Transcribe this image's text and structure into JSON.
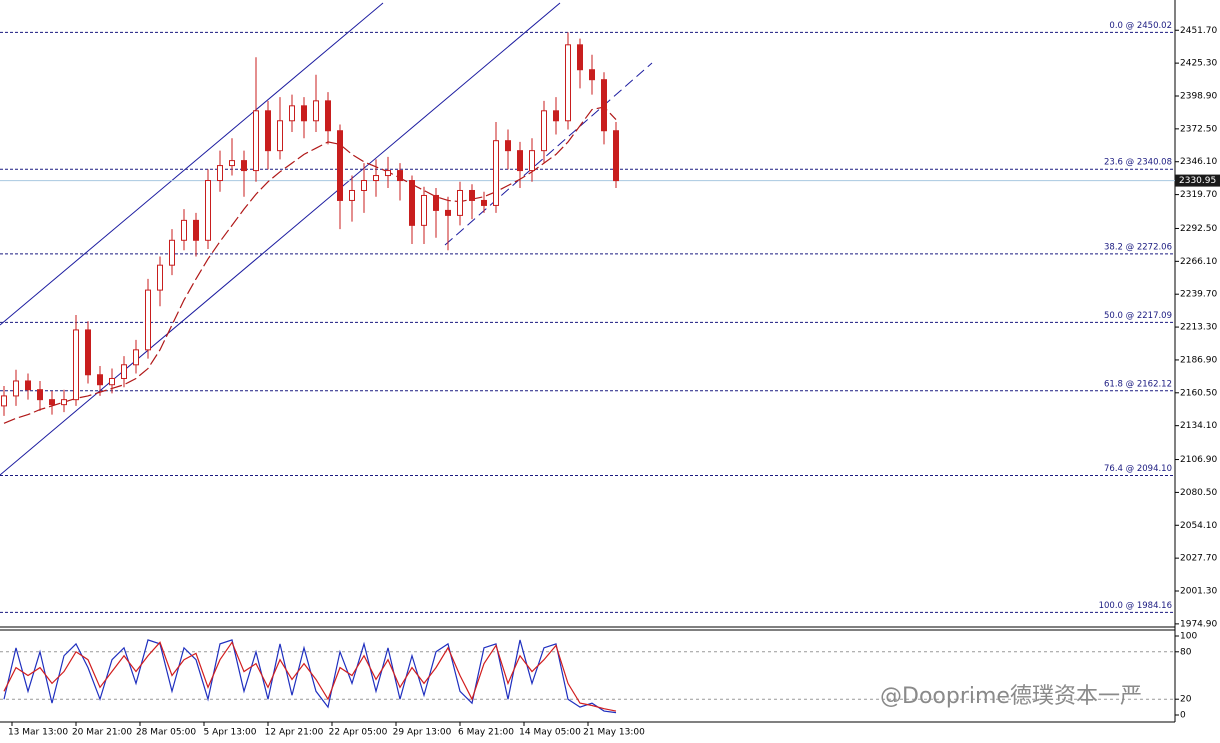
{
  "chart_data": {
    "type": "candlestick",
    "x_labels": [
      "13 Mar 13:00",
      "20 Mar 21:00",
      "28 Mar 05:00",
      "5 Apr 13:00",
      "12 Apr 21:00",
      "22 Apr 05:00",
      "29 Apr 13:00",
      "6 May 21:00",
      "14 May 05:00",
      "21 May 13:00"
    ],
    "color": "#c81e1e",
    "open": [
      2150,
      2158,
      2170,
      2163,
      2155,
      2151,
      2155,
      2211,
      2175,
      2167,
      2172,
      2183,
      2195,
      2243,
      2263,
      2283,
      2299,
      2283,
      2331,
      2343,
      2347,
      2339,
      2387,
      2355,
      2379,
      2391,
      2379,
      2395,
      2371,
      2315,
      2323,
      2331,
      2335,
      2339,
      2331,
      2295,
      2319,
      2307,
      2303,
      2323,
      2315,
      2311,
      2363,
      2355,
      2339,
      2355,
      2387,
      2379,
      2440,
      2420,
      2412,
      2371
    ],
    "high": [
      2166,
      2179,
      2176,
      2170,
      2162,
      2163,
      2223,
      2218,
      2182,
      2180,
      2190,
      2203,
      2252,
      2270,
      2292,
      2308,
      2305,
      2340,
      2355,
      2365,
      2355,
      2430,
      2395,
      2398,
      2400,
      2398,
      2416,
      2402,
      2376,
      2335,
      2345,
      2348,
      2350,
      2345,
      2335,
      2326,
      2325,
      2318,
      2330,
      2328,
      2322,
      2378,
      2372,
      2362,
      2365,
      2395,
      2398,
      2450.02,
      2445,
      2432,
      2418,
      2378
    ],
    "low": [
      2142,
      2150,
      2155,
      2146,
      2143,
      2145,
      2150,
      2168,
      2158,
      2160,
      2165,
      2176,
      2188,
      2230,
      2255,
      2275,
      2270,
      2276,
      2322,
      2335,
      2318,
      2330,
      2340,
      2348,
      2370,
      2365,
      2370,
      2360,
      2292,
      2298,
      2305,
      2318,
      2325,
      2315,
      2280,
      2280,
      2285,
      2275,
      2295,
      2300,
      2305,
      2305,
      2340,
      2325,
      2330,
      2345,
      2368,
      2372,
      2405,
      2400,
      2360,
      2325
    ],
    "close": [
      2158,
      2170,
      2163,
      2155,
      2151,
      2155,
      2211,
      2175,
      2167,
      2172,
      2183,
      2195,
      2243,
      2263,
      2283,
      2299,
      2283,
      2331,
      2343,
      2347,
      2339,
      2387,
      2355,
      2379,
      2391,
      2379,
      2395,
      2371,
      2315,
      2323,
      2331,
      2335,
      2339,
      2331,
      2295,
      2319,
      2307,
      2303,
      2323,
      2315,
      2311,
      2363,
      2355,
      2339,
      2355,
      2387,
      2379,
      2440,
      2420,
      2412,
      2371,
      2330.95
    ],
    "ma": {
      "color": "#b01818",
      "values": [
        2136,
        2140,
        2143,
        2147,
        2150,
        2153,
        2156,
        2158,
        2161,
        2164,
        2167,
        2172,
        2180,
        2195,
        2215,
        2235,
        2252,
        2268,
        2282,
        2295,
        2308,
        2320,
        2330,
        2338,
        2345,
        2352,
        2357,
        2362,
        2360,
        2352,
        2346,
        2342,
        2338,
        2333,
        2328,
        2323,
        2318,
        2315,
        2314,
        2316,
        2318,
        2322,
        2327,
        2332,
        2338,
        2345,
        2352,
        2362,
        2375,
        2388,
        2390,
        2380
      ]
    },
    "ylim": [
      1974,
      2476
    ],
    "yticks": [
      {
        "value": 2451.7,
        "label": "2451.70"
      },
      {
        "value": 2425.3,
        "label": "2425.30"
      },
      {
        "value": 2398.9,
        "label": "2398.90"
      },
      {
        "value": 2372.5,
        "label": "2372.50"
      },
      {
        "value": 2346.1,
        "label": "2346.10"
      },
      {
        "value": 2319.7,
        "label": "2319.70"
      },
      {
        "value": 2292.5,
        "label": "2292.50"
      },
      {
        "value": 2266.1,
        "label": "2266.10"
      },
      {
        "value": 2239.7,
        "label": "2239.70"
      },
      {
        "value": 2213.3,
        "label": "2213.30"
      },
      {
        "value": 2186.9,
        "label": "2186.90"
      },
      {
        "value": 2160.5,
        "label": "2160.50"
      },
      {
        "value": 2134.1,
        "label": "2134.10"
      },
      {
        "value": 2106.9,
        "label": "2106.90"
      },
      {
        "value": 2080.5,
        "label": "2080.50"
      },
      {
        "value": 2054.1,
        "label": "2054.10"
      },
      {
        "value": 2027.7,
        "label": "2027.70"
      },
      {
        "value": 2001.3,
        "label": "2001.30"
      },
      {
        "value": 1974.9,
        "label": "1974.90"
      }
    ],
    "current_price": 2330.95,
    "fib_levels": [
      {
        "value": 2450.02,
        "label": "0.0 @ 2450.02"
      },
      {
        "value": 2340.08,
        "label": "23.6 @ 2340.08"
      },
      {
        "value": 2272.06,
        "label": "38.2 @ 2272.06"
      },
      {
        "value": 2217.09,
        "label": "50.0 @ 2217.09"
      },
      {
        "value": 2162.12,
        "label": "61.8 @ 2162.12"
      },
      {
        "value": 2094.1,
        "label": "76.4 @ 2094.10"
      },
      {
        "value": 1984.16,
        "label": "100.0 @ 1984.16"
      }
    ],
    "stochastic": {
      "ylim": [
        0,
        100
      ],
      "yticks": [
        100,
        80,
        20,
        0
      ],
      "series": [
        {
          "color": "#1f2fbf",
          "values": [
            20,
            85,
            30,
            80,
            15,
            75,
            90,
            60,
            20,
            70,
            85,
            40,
            95,
            90,
            30,
            85,
            70,
            20,
            90,
            95,
            30,
            80,
            20,
            90,
            25,
            85,
            30,
            10,
            80,
            40,
            90,
            30,
            85,
            20,
            75,
            25,
            80,
            90,
            30,
            15,
            85,
            90,
            20,
            95,
            40,
            85,
            90,
            20,
            10,
            15,
            5,
            3
          ]
        },
        {
          "color": "#d21e1e",
          "values": [
            30,
            60,
            50,
            60,
            40,
            55,
            80,
            70,
            35,
            55,
            75,
            55,
            75,
            92,
            50,
            70,
            78,
            35,
            70,
            92,
            55,
            65,
            35,
            70,
            45,
            65,
            45,
            20,
            60,
            50,
            75,
            45,
            70,
            35,
            60,
            40,
            60,
            85,
            50,
            20,
            65,
            88,
            40,
            75,
            55,
            70,
            88,
            40,
            15,
            12,
            8,
            5
          ]
        }
      ]
    },
    "watermark": "@Dooprime德璞资本一严"
  }
}
